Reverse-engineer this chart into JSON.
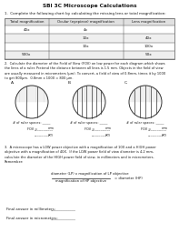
{
  "title": "SBI 3C Microscope Calculations",
  "q1_text": "1.  Complete the following chart by calculating the missing lens or total magnification:",
  "table_headers": [
    "Total magnification",
    "Ocular (eyepiece) magnification",
    "Lens magnification"
  ],
  "table_rows": [
    [
      "40x",
      "4x",
      ""
    ],
    [
      "",
      "10x",
      "40x"
    ],
    [
      "",
      "10x",
      "100x"
    ],
    [
      "500x",
      "",
      "50x"
    ]
  ],
  "q2_text": "2.  Calculate the diameter of the Field of View (FOV) on low power for each diagram which shows\nthe lines of a ruler. Pretend the distance between all lines is 1.5 mm. Objects in the field of view\nare usually measured in micrometers (μm). To convert, a field of view of 0.8mm, times it by 1000\nto get 800μm.  0.8mm x 1000 = 800 μm.",
  "circle_labels": [
    "A.",
    "B.",
    "C."
  ],
  "ruler_lines_A": 2,
  "ruler_lines_B": 6,
  "ruler_lines_C": 5,
  "q3_text": "3.  A microscope has a LOW power objective with a magnification of 10X and a HIGH power\nobjective with a magnification of 40X.  If the LOW power field of view diameter is 4.2 mm,\ncalculate the diameter of the HIGH power field of view, in millimeters and in micrometers.\nRemember:",
  "formula_num": "diameter (LP) x magnification of LP objective",
  "formula_den": "magnification of HP objective",
  "formula_eq": "= diameter (HP)",
  "final_mm": "Final answer in millimeters:",
  "final_um": "Final answer in micrometers:",
  "bg_color": "#ffffff",
  "text_color": "#1a1a1a",
  "table_header_bg": "#e0e0e0",
  "table_alt_bg": "#efefef"
}
